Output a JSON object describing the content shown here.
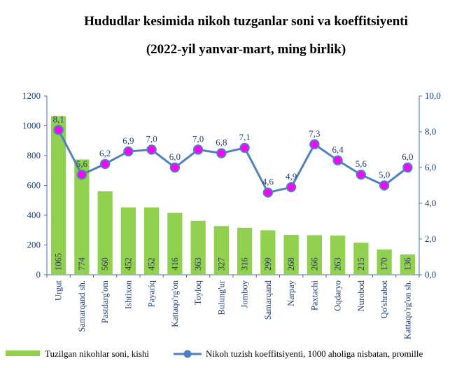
{
  "colors": {
    "bar": "#92d050",
    "line": "#4f81bd",
    "marker": "#ff00ff",
    "axis": "#4f6fa0"
  },
  "chart_data": {
    "type": "bar+line",
    "title": "Hududlar kesimida nikoh tuzganlar soni va koeffitsiyenti",
    "subtitle": "(2022-yil yanvar-mart, ming birlik)",
    "categories": [
      "Urgut",
      "Samarqand sh.",
      "Pastdarg'om",
      "Ishtixon",
      "Payariq",
      "Kattaqo'rg'on",
      "Toyloq",
      "Bulung'ur",
      "Jomboy",
      "Samarqand",
      "Narpay",
      "Paxtachi",
      "Oqdaryo",
      "Nurobod",
      "Qo'shrabot",
      "Kattaqo'rg'on sh."
    ],
    "series": [
      {
        "name": "Tuzilgan nikohlar soni, kishi",
        "type": "bar",
        "axis": "left",
        "values": [
          1065,
          774,
          560,
          452,
          452,
          416,
          363,
          327,
          316,
          299,
          268,
          266,
          263,
          215,
          170,
          136
        ],
        "labels": [
          "1065",
          "774",
          "560",
          "452",
          "452",
          "416",
          "363",
          "327",
          "316",
          "299",
          "268",
          "266",
          "263",
          "215",
          "170",
          "136"
        ]
      },
      {
        "name": "Nikoh tuzish koeffitsiyenti, 1000 aholiga nisbatan, promille",
        "type": "line",
        "axis": "right",
        "values": [
          8.1,
          5.6,
          6.2,
          6.9,
          7.0,
          6.0,
          7.0,
          6.8,
          7.1,
          4.6,
          4.9,
          7.3,
          6.4,
          5.6,
          5.0,
          6.0
        ],
        "labels": [
          "8,1",
          "5,6",
          "6,2",
          "6,9",
          "7,0",
          "6,0",
          "7,0",
          "6,8",
          "7,1",
          "4,6",
          "4,9",
          "7,3",
          "6,4",
          "5,6",
          "5,0",
          "6,0"
        ]
      }
    ],
    "y_left": {
      "min": 0,
      "max": 1200,
      "ticks": [
        "0",
        "200",
        "400",
        "600",
        "800",
        "1000",
        "1200"
      ]
    },
    "y_right": {
      "min": 0,
      "max": 10,
      "ticks": [
        "0,0",
        "2,0",
        "4,0",
        "6,0",
        "8,0",
        "10,0"
      ]
    },
    "legend_position": "bottom",
    "grid": false
  }
}
